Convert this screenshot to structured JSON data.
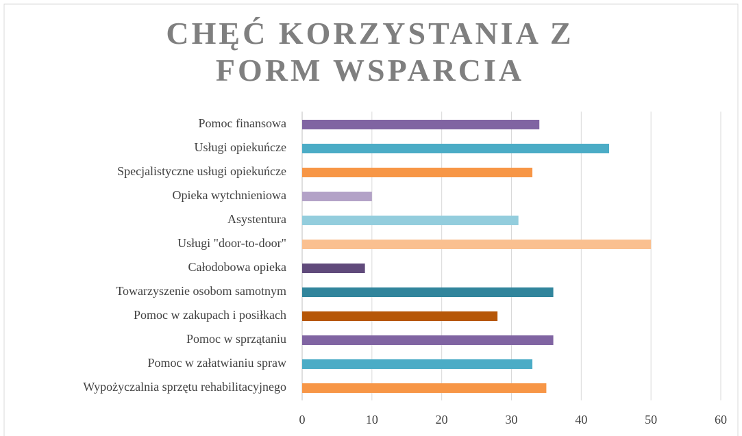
{
  "chart_data": {
    "type": "bar",
    "orientation": "horizontal",
    "title": "CHĘĆ KORZYSTANIA Z FORM WSPARCIA",
    "categories": [
      "Pomoc finansowa",
      "Usługi opiekuńcze",
      "Specjalistyczne usługi opiekuńcze",
      "Opieka wytchnieniowa",
      "Asystentura",
      "Usługi \"door-to-door\"",
      "Całodobowa opieka",
      "Towarzyszenie osobom samotnym",
      "Pomoc w zakupach i posiłkach",
      "Pomoc w sprzątaniu",
      "Pomoc w załatwianiu spraw",
      "Wypożyczalnia sprzętu rehabilitacyjnego"
    ],
    "values": [
      34,
      44,
      33,
      10,
      31,
      50,
      9,
      36,
      28,
      36,
      33,
      35
    ],
    "colors": [
      "#8064a2",
      "#4bacc6",
      "#f79646",
      "#b3a2c7",
      "#93cddd",
      "#fac090",
      "#604a7b",
      "#31859c",
      "#b65708",
      "#8064a2",
      "#4bacc6",
      "#f79646"
    ],
    "xlim": [
      0,
      60
    ],
    "xticks": [
      0,
      10,
      20,
      30,
      40,
      50,
      60
    ],
    "grid": true
  }
}
